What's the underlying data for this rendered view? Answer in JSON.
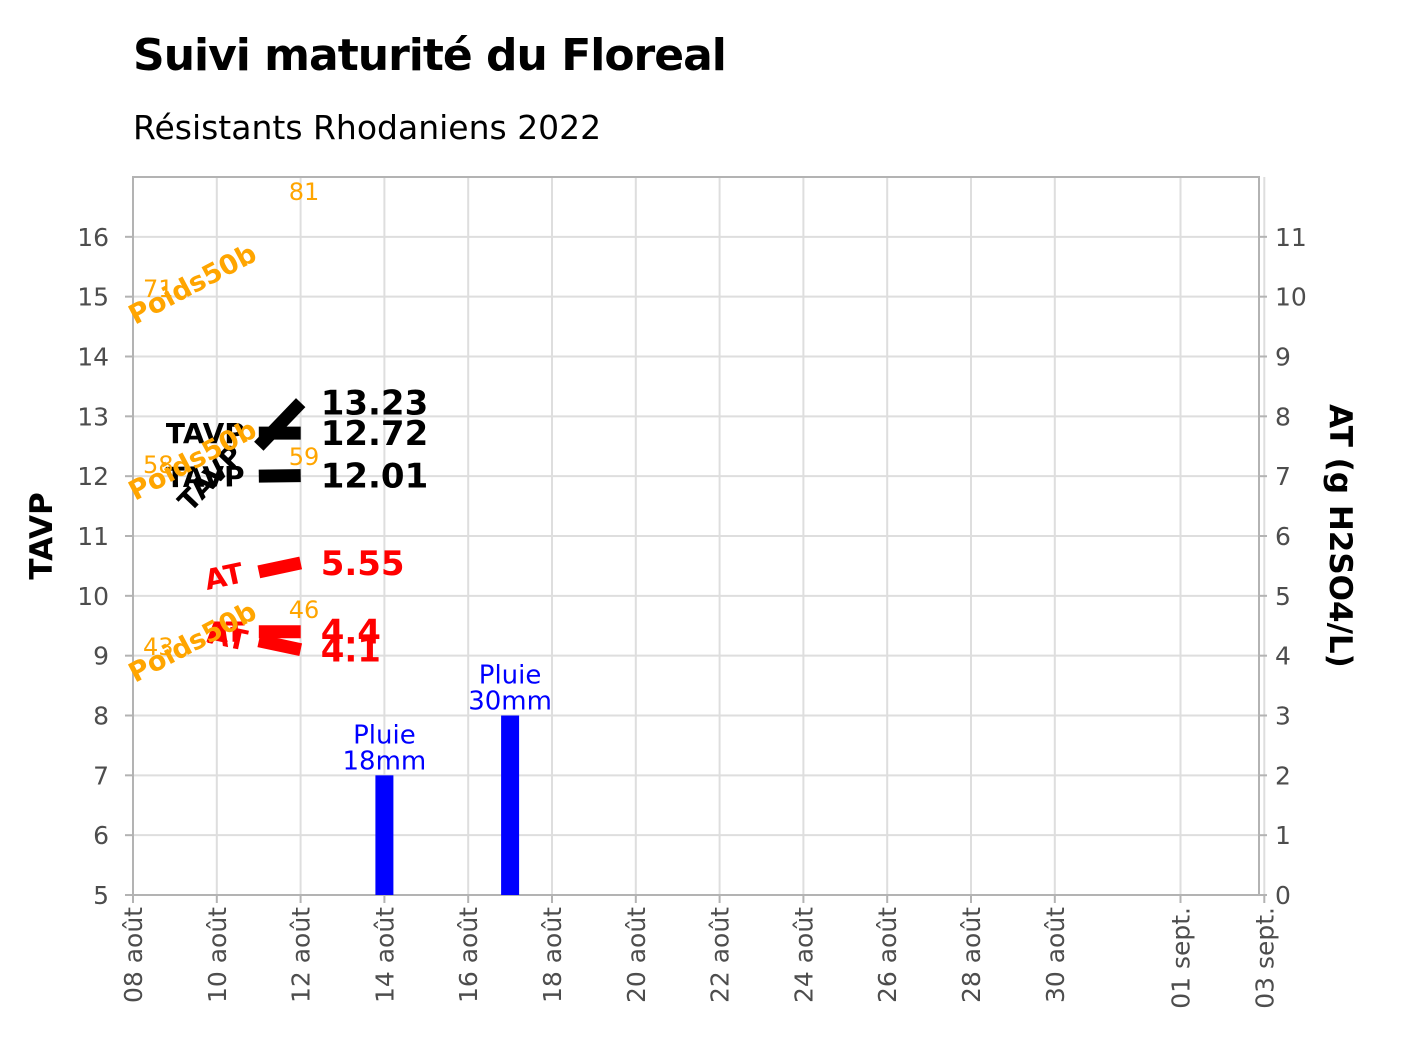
{
  "chart_data": {
    "type": "line",
    "title": "Suivi maturité du Floreal",
    "subtitle": "Résistants Rhodaniens 2022",
    "ylabel": "TAVP",
    "y2label": "AT (g H2SO4/L)",
    "ylim": [
      5,
      17
    ],
    "y2lim": [
      0,
      12
    ],
    "y_ticks": [
      5,
      6,
      7,
      8,
      9,
      10,
      11,
      12,
      13,
      14,
      15,
      16
    ],
    "y2_ticks": [
      0,
      1,
      2,
      3,
      4,
      5,
      6,
      7,
      8,
      9,
      10,
      11
    ],
    "x_ticks": [
      "08 août",
      "10 août",
      "12 août",
      "14 août",
      "16 août",
      "18 août",
      "20 août",
      "22 août",
      "24 août",
      "26 août",
      "28 août",
      "30 août",
      "01 sept.",
      "03 sept."
    ],
    "grid": true,
    "series": [
      {
        "name": "TAVP",
        "color": "#000000",
        "x": [
          "10 août",
          "11 août"
        ],
        "y": [
          12.5,
          13.23
        ],
        "end_label": "13.23"
      },
      {
        "name": "TAVP",
        "color": "#000000",
        "x": [
          "10 août",
          "11 août"
        ],
        "y": [
          12.72,
          12.72
        ],
        "end_label": "12.72"
      },
      {
        "name": "TAVP",
        "color": "#000000",
        "x": [
          "10 août",
          "11 août"
        ],
        "y": [
          12.0,
          12.01
        ],
        "end_label": "12.01"
      },
      {
        "name": "AT",
        "color": "#ff0000",
        "x": [
          "10 août",
          "11 août"
        ],
        "y": [
          5.4,
          5.55
        ],
        "end_label": "5.55"
      },
      {
        "name": "AT",
        "color": "#ff0000",
        "x": [
          "10 août",
          "11 août"
        ],
        "y": [
          4.4,
          4.4
        ],
        "end_label": "4.4"
      },
      {
        "name": "AT",
        "color": "#ff0000",
        "x": [
          "10 août",
          "11 août"
        ],
        "y": [
          4.25,
          4.1
        ],
        "end_label": "4.1"
      }
    ],
    "poids_labels": [
      {
        "series": "Poids50b",
        "start": "71",
        "end": "81"
      },
      {
        "series": "Poids50b",
        "start": "58",
        "end": "59"
      },
      {
        "series": "Poids50b",
        "start": "43",
        "end": "46"
      }
    ],
    "rain_bars": [
      {
        "date": "14 août",
        "value": 7,
        "label1": "Pluie",
        "label2": "18mm"
      },
      {
        "date": "17 août",
        "value": 8,
        "label1": "Pluie",
        "label2": "30mm"
      }
    ],
    "colors": {
      "tavp": "#000000",
      "at": "#ff0000",
      "poids": "#ffa500",
      "rain": "#0000ff",
      "grid": "#dedede",
      "frame": "#b3b3b3",
      "tick": "#4d4d4d"
    }
  }
}
